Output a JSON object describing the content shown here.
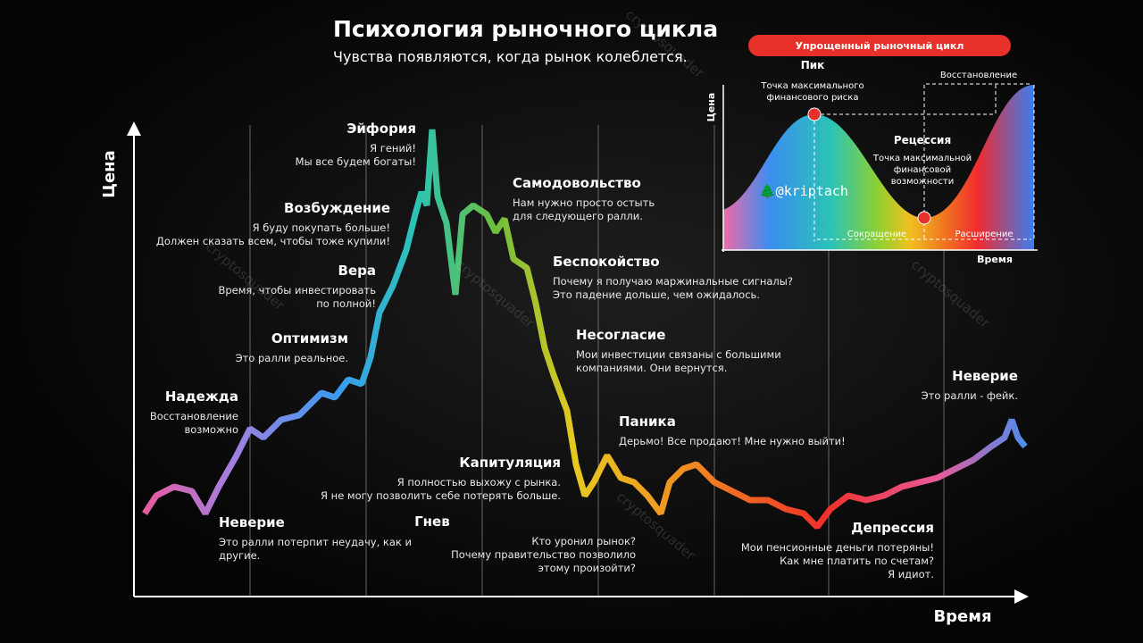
{
  "header": {
    "title": "Психология рыночного цикла",
    "subtitle": "Чувства появляются, когда рынок колеблется."
  },
  "axes": {
    "y": "Цена",
    "x": "Время"
  },
  "watermark": "cryptosquader",
  "stages": [
    {
      "name": "Неверие",
      "lines": [
        "Это ралли потерпит неудачу, как и",
        "другие."
      ]
    },
    {
      "name": "Надежда",
      "lines": [
        "Восстановление",
        "возможно"
      ]
    },
    {
      "name": "Оптимизм",
      "lines": [
        "Это ралли реальное."
      ]
    },
    {
      "name": "Вера",
      "lines": [
        "Время, чтобы инвестировать",
        "по полной!"
      ]
    },
    {
      "name": "Возбуждение",
      "lines": [
        "Я буду покупать больше!",
        "Должен сказать всем, чтобы тоже купили!"
      ]
    },
    {
      "name": "Эйфория",
      "lines": [
        "Я гений!",
        "Мы все будем богаты!"
      ]
    },
    {
      "name": "Самодовольство",
      "lines": [
        "Нам нужно просто остыть",
        "для следующего ралли."
      ]
    },
    {
      "name": "Беспокойство",
      "lines": [
        "Почему я получаю маржинальные сигналы?",
        "Это падение дольше, чем ожидалось."
      ]
    },
    {
      "name": "Несогласие",
      "lines": [
        "Мои инвестиции связаны с большими",
        "компаниями. Они вернутся."
      ]
    },
    {
      "name": "Паника",
      "lines": [
        "Дерьмо! Все продают! Мне нужно выйти!"
      ]
    },
    {
      "name": "Капитуляция",
      "lines": [
        "Я полностью выхожу с рынка.",
        "Я не могу позволить себе потерять больше."
      ]
    },
    {
      "name": "Гнев",
      "lines": [
        "Кто уронил рынок?",
        "Почему правительство позволило",
        "этому произойти?"
      ]
    },
    {
      "name": "Депрессия",
      "lines": [
        "Мои пенсионные деньги потеряны!",
        "Как мне платить по счетам?",
        "Я идиот."
      ]
    },
    {
      "name": "Неверие",
      "lines": [
        "Это ралли - фейк."
      ]
    }
  ],
  "inset": {
    "title": "Упрощенный рыночный цикл",
    "peak": "Пик",
    "peak_note": [
      "Точка максимального",
      "финансового риска"
    ],
    "recession": "Рецессия",
    "recession_note": [
      "Точка максимальной",
      "финансовой",
      "возможности"
    ],
    "recovery": "Восстановление",
    "contraction": "Сокращение",
    "expansion": "Расширение",
    "y_axis": "Цена",
    "x_axis": "Время",
    "handle": "🌲@kriptach"
  }
}
